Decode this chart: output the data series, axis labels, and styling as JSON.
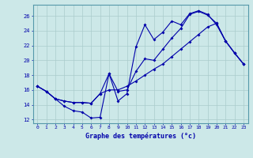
{
  "xlabel": "Graphe des températures (°c)",
  "xlim": [
    -0.5,
    23.5
  ],
  "ylim": [
    11.5,
    27.5
  ],
  "yticks": [
    12,
    14,
    16,
    18,
    20,
    22,
    24,
    26
  ],
  "xticks": [
    0,
    1,
    2,
    3,
    4,
    5,
    6,
    7,
    8,
    9,
    10,
    11,
    12,
    13,
    14,
    15,
    16,
    17,
    18,
    19,
    20,
    21,
    22,
    23
  ],
  "bg_color": "#cce8e8",
  "line_color": "#0000aa",
  "grid_color": "#aacccc",
  "line1_y": [
    16.5,
    15.8,
    14.8,
    13.8,
    13.2,
    13.0,
    12.2,
    12.3,
    18.2,
    14.5,
    15.5,
    21.8,
    24.8,
    22.8,
    23.8,
    25.3,
    24.8,
    26.3,
    26.7,
    26.2,
    24.8,
    22.6,
    21.0,
    19.5
  ],
  "line2_y": [
    16.5,
    15.8,
    14.8,
    14.5,
    14.3,
    14.3,
    14.2,
    15.5,
    18.2,
    15.8,
    16.0,
    18.5,
    20.2,
    20.0,
    21.5,
    23.0,
    24.3,
    26.2,
    26.6,
    26.1,
    25.0,
    22.6,
    21.0,
    19.5
  ],
  "line3_y": [
    16.5,
    15.8,
    14.8,
    14.5,
    14.3,
    14.3,
    14.2,
    15.5,
    16.0,
    16.0,
    16.5,
    17.2,
    18.0,
    18.8,
    19.5,
    20.5,
    21.5,
    22.5,
    23.5,
    24.5,
    25.0,
    22.6,
    21.0,
    19.5
  ]
}
